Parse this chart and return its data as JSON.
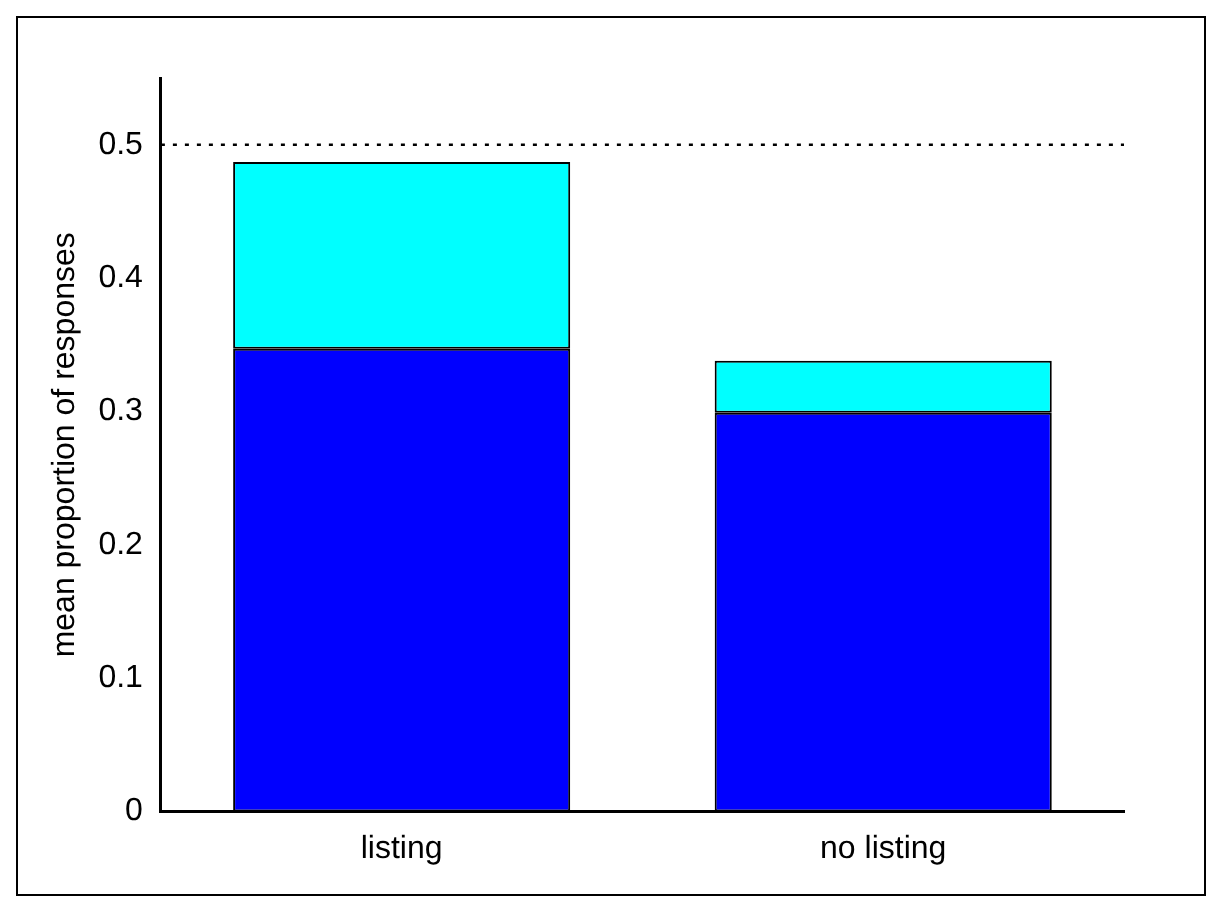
{
  "chart_data": {
    "type": "bar",
    "ylabel": "mean proportion of responses",
    "categories": [
      "listing",
      "no listing"
    ],
    "stacked": true,
    "series": [
      {
        "color": "#0000ff",
        "values": [
          0.347,
          0.299
        ]
      },
      {
        "color": "#00ffff",
        "values": [
          0.14,
          0.039
        ]
      }
    ],
    "ylim": [
      0,
      0.55
    ],
    "yticks": [
      0,
      0.1,
      0.2,
      0.3,
      0.4,
      0.5
    ],
    "grid": false,
    "legend": false,
    "ref_lines": [
      {
        "axis": "y",
        "value": 0.5,
        "color": "#000000",
        "line_style": "dotted"
      }
    ]
  }
}
